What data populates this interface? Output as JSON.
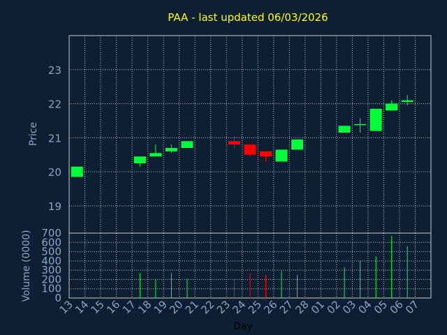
{
  "chart_data": {
    "type": "candlestick",
    "title": "PAA - last updated 06/03/2026",
    "xlabel": "Day",
    "price_panel": {
      "ylabel": "Price",
      "ylim": [
        18.2,
        24.0
      ],
      "yticks": [
        19,
        20,
        21,
        22,
        23
      ],
      "grid": true
    },
    "volume_panel": {
      "ylabel": "Volume (0000)",
      "ylim": [
        0,
        700
      ],
      "yticks": [
        0,
        100,
        200,
        300,
        400,
        500,
        600,
        700
      ],
      "grid": true
    },
    "categories": [
      "13",
      "14",
      "15",
      "16",
      "17",
      "18",
      "19",
      "20",
      "21",
      "22",
      "23",
      "24",
      "25",
      "26",
      "27",
      "28",
      "01",
      "02",
      "03",
      "04",
      "05",
      "06",
      "07"
    ],
    "series": [
      {
        "x": "13",
        "open": 19.85,
        "high": 20.15,
        "low": 19.85,
        "close": 20.15,
        "volume": 0
      },
      {
        "x": "17",
        "open": 20.25,
        "high": 20.45,
        "low": 20.15,
        "close": 20.45,
        "volume": 270
      },
      {
        "x": "18",
        "open": 20.45,
        "high": 20.8,
        "low": 20.45,
        "close": 20.55,
        "volume": 200
      },
      {
        "x": "19",
        "open": 20.6,
        "high": 20.8,
        "low": 20.55,
        "close": 20.7,
        "volume": 270
      },
      {
        "x": "20",
        "open": 20.7,
        "high": 20.9,
        "low": 20.7,
        "close": 20.9,
        "volume": 210
      },
      {
        "x": "23",
        "open": 20.9,
        "high": 21.05,
        "low": 20.7,
        "close": 20.8,
        "volume": 200
      },
      {
        "x": "24",
        "open": 20.8,
        "high": 20.8,
        "low": 20.45,
        "close": 20.5,
        "volume": 270
      },
      {
        "x": "25",
        "open": 20.6,
        "high": 20.6,
        "low": 20.3,
        "close": 20.45,
        "volume": 250
      },
      {
        "x": "26",
        "open": 20.3,
        "high": 20.65,
        "low": 20.3,
        "close": 20.65,
        "volume": 290
      },
      {
        "x": "27",
        "open": 20.65,
        "high": 20.95,
        "low": 20.65,
        "close": 20.95,
        "volume": 250
      },
      {
        "x": "02",
        "open": 21.15,
        "high": 21.35,
        "low": 21.15,
        "close": 21.35,
        "volume": 330
      },
      {
        "x": "03",
        "open": 21.38,
        "high": 21.58,
        "low": 21.15,
        "close": 21.4,
        "volume": 400
      },
      {
        "x": "04",
        "open": 21.2,
        "high": 21.85,
        "low": 21.2,
        "close": 21.85,
        "volume": 450
      },
      {
        "x": "05",
        "open": 21.8,
        "high": 22.1,
        "low": 21.8,
        "close": 22.0,
        "volume": 670
      },
      {
        "x": "06",
        "open": 22.05,
        "high": 22.25,
        "low": 21.95,
        "close": 22.1,
        "volume": 560
      }
    ],
    "colors": {
      "background": "#0f1f33",
      "up": "#00ff3a",
      "down": "#ff0000",
      "title": "#ffff00",
      "axis_text": "#8aa6c7",
      "grid": "#c8c8c8"
    }
  }
}
